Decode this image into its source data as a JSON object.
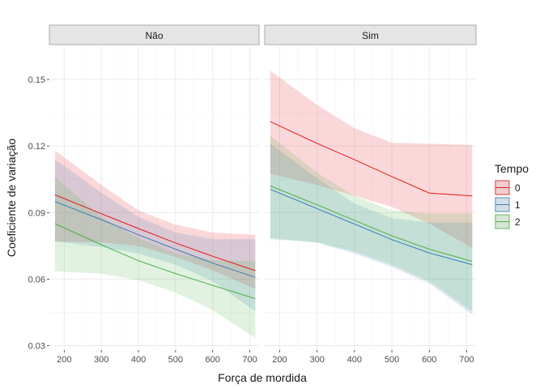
{
  "chart_data": {
    "type": "line",
    "xlabel": "Força de mordida",
    "ylabel": "Coeficiente de variação",
    "xlim": [
      160,
      725
    ],
    "ylim": [
      0.028,
      0.165
    ],
    "x_ticks": [
      200,
      300,
      400,
      500,
      600,
      700
    ],
    "y_ticks": [
      0.03,
      0.06,
      0.09,
      0.12,
      0.15
    ],
    "y_tick_labels": [
      "0.03",
      "0.06",
      "0.09",
      "0.12",
      "0.15"
    ],
    "grid": true,
    "legend": {
      "title": "Tempo",
      "position": "right",
      "entries": [
        "0",
        "1",
        "2"
      ]
    },
    "colors": {
      "0": "#e41a1c",
      "1": "#377eb8",
      "2": "#4daf4a"
    },
    "panels": [
      {
        "label": "Não",
        "series": [
          {
            "name": "0",
            "x": [
              175,
              300,
              400,
              500,
              600,
              715
            ],
            "y": [
              0.098,
              0.0895,
              0.0828,
              0.0763,
              0.0703,
              0.0638
            ],
            "lower": [
              0.077,
              0.0765,
              0.075,
              0.07,
              0.064,
              0.0555
            ],
            "upper": [
              0.118,
              0.1025,
              0.091,
              0.0845,
              0.081,
              0.08
            ]
          },
          {
            "name": "1",
            "x": [
              175,
              300,
              400,
              500,
              600,
              715
            ],
            "y": [
              0.095,
              0.0868,
              0.08,
              0.0735,
              0.0672,
              0.0608
            ],
            "lower": [
              0.077,
              0.0745,
              0.0715,
              0.0665,
              0.059,
              0.0455
            ],
            "upper": [
              0.114,
              0.099,
              0.088,
              0.081,
              0.078,
              0.078
            ]
          },
          {
            "name": "2",
            "x": [
              175,
              300,
              400,
              500,
              600,
              715
            ],
            "y": [
              0.085,
              0.0755,
              0.0683,
              0.0625,
              0.0572,
              0.0512
            ],
            "lower": [
              0.0635,
              0.0625,
              0.0595,
              0.054,
              0.046,
              0.0335
            ],
            "upper": [
              0.106,
              0.088,
              0.0785,
              0.0715,
              0.0685,
              0.068
            ]
          }
        ]
      },
      {
        "label": "Sim",
        "series": [
          {
            "name": "0",
            "x": [
              175,
              300,
              400,
              500,
              600,
              715
            ],
            "y": [
              0.131,
              0.1212,
              0.1138,
              0.1062,
              0.0988,
              0.0975
            ],
            "lower": [
              0.1075,
              0.1025,
              0.0975,
              0.0925,
              0.085,
              0.074
            ],
            "upper": [
              0.154,
              0.1385,
              0.128,
              0.1215,
              0.121,
              0.1205
            ]
          },
          {
            "name": "1",
            "x": [
              175,
              300,
              400,
              500,
              600,
              715
            ],
            "y": [
              0.1005,
              0.0918,
              0.0848,
              0.0778,
              0.0718,
              0.0665
            ],
            "lower": [
              0.078,
              0.0765,
              0.0715,
              0.0655,
              0.058,
              0.044
            ],
            "upper": [
              0.121,
              0.1055,
              0.094,
              0.0875,
              0.0855,
              0.0855
            ]
          },
          {
            "name": "2",
            "x": [
              175,
              300,
              400,
              500,
              600,
              715
            ],
            "y": [
              0.102,
              0.0935,
              0.0865,
              0.0795,
              0.0735,
              0.068
            ],
            "lower": [
              0.0785,
              0.0765,
              0.0725,
              0.0665,
              0.059,
              0.0455
            ],
            "upper": [
              0.1245,
              0.108,
              0.0975,
              0.091,
              0.0895,
              0.0895
            ]
          }
        ]
      }
    ]
  }
}
